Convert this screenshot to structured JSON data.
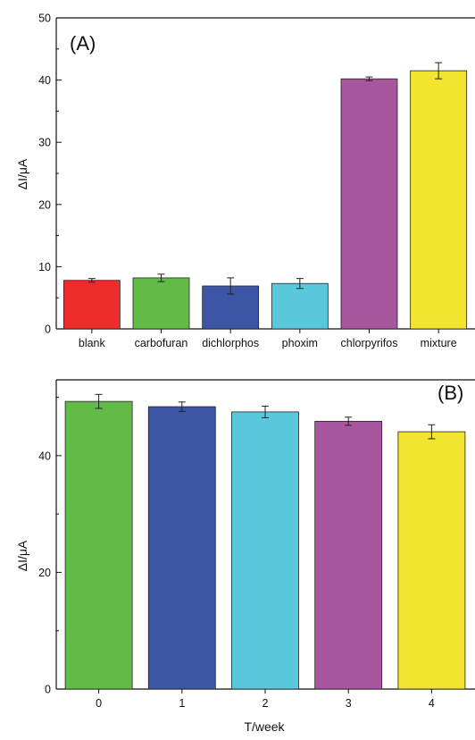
{
  "chart_data": [
    {
      "panel_label": "(A)",
      "type": "bar",
      "categories": [
        "blank",
        "carbofuran",
        "dichlorphos",
        "phoxim",
        "chlorpyrifos",
        "mixture"
      ],
      "values": [
        7.8,
        8.2,
        6.9,
        7.3,
        40.2,
        41.5
      ],
      "errors": [
        0.3,
        0.6,
        1.3,
        0.8,
        0.3,
        1.3
      ],
      "colors": [
        "#ee2d2a",
        "#62bb46",
        "#3c55a5",
        "#5ac8dc",
        "#a8579f",
        "#f2e52d"
      ],
      "ylabel": "ΔI/μA",
      "xlabel": "",
      "ylim": [
        0,
        50
      ],
      "y_ticks": [
        0,
        10,
        20,
        30,
        40,
        50
      ],
      "y_minor_step": 5,
      "grid": false
    },
    {
      "panel_label": "(B)",
      "type": "bar",
      "categories": [
        "0",
        "1",
        "2",
        "3",
        "4"
      ],
      "values": [
        49.3,
        48.4,
        47.5,
        45.9,
        44.1
      ],
      "errors": [
        1.2,
        0.8,
        1.0,
        0.7,
        1.2
      ],
      "colors": [
        "#62bb46",
        "#3c55a5",
        "#5ac8dc",
        "#a8579f",
        "#f2e52d"
      ],
      "ylabel": "ΔI/μA",
      "xlabel": "T/week",
      "ylim": [
        0,
        53
      ],
      "y_ticks": [
        0,
        20,
        40
      ],
      "y_minor_step": 10,
      "grid": false
    }
  ]
}
